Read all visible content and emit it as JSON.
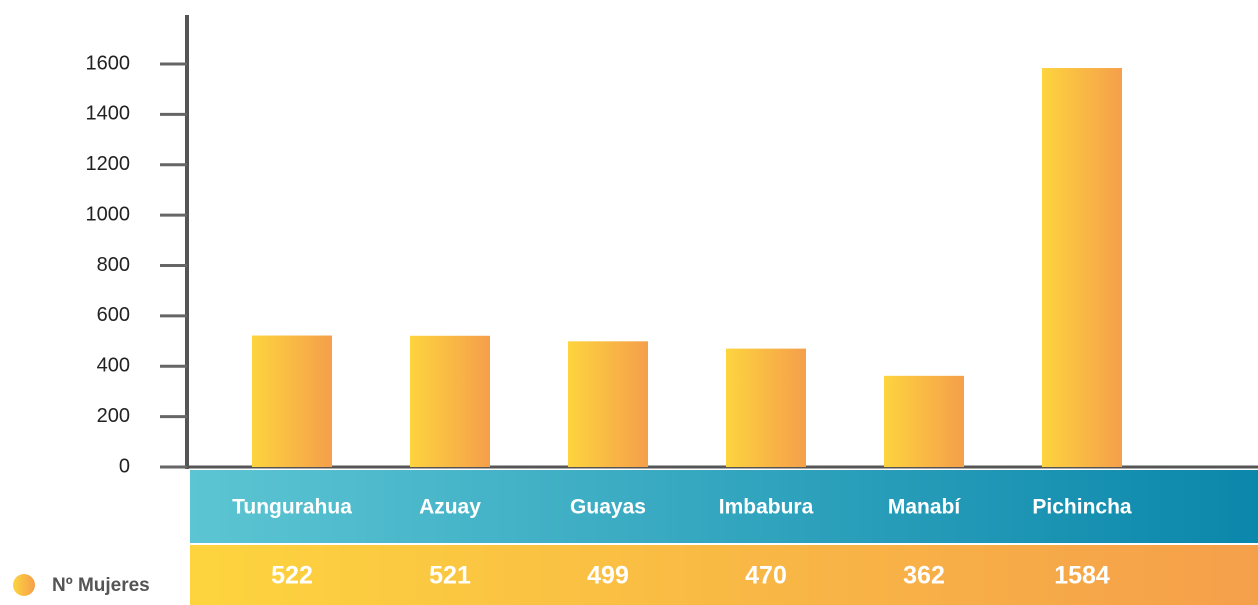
{
  "chart_data": {
    "type": "bar",
    "categories": [
      "Tungurahua",
      "Azuay",
      "Guayas",
      "Imbabura",
      "Manabí",
      "Pichincha"
    ],
    "series": [
      {
        "name": "Nº Mujeres",
        "colors": [
          "#fdd43e",
          "#f59f4b"
        ],
        "values": [
          522,
          521,
          499,
          470,
          362,
          1584
        ]
      }
    ],
    "category_band_colors": [
      "#5cc5d3",
      "#0b87ab"
    ],
    "ylim": [
      0,
      1600
    ],
    "yticks": [
      0,
      200,
      400,
      600,
      800,
      1000,
      1200,
      1400,
      1600
    ],
    "grid": false
  }
}
